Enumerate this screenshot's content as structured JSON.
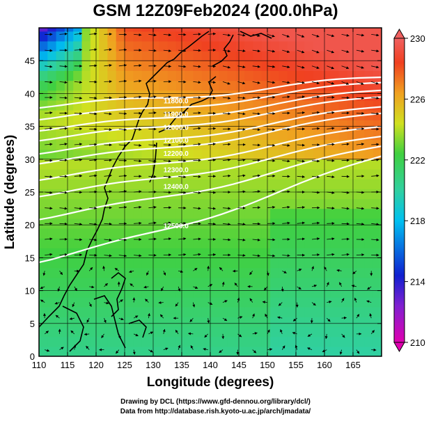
{
  "title": "GSM 12Z09Feb2024 (200.0hPa)",
  "map": {
    "x_label": "Longitude (degrees)",
    "y_label": "Latitude  (degrees)",
    "lon_range": [
      110,
      170
    ],
    "lat_range": [
      0,
      50
    ],
    "lon_ticks": [
      110,
      115,
      120,
      125,
      130,
      135,
      140,
      145,
      150,
      155,
      160,
      165
    ],
    "lat_ticks": [
      0,
      5,
      10,
      15,
      20,
      25,
      30,
      35,
      40,
      45
    ],
    "grid": true,
    "field": "temperature (K), shaded",
    "vectors": "wind arrows on regular grid",
    "contours": "white geopotential height lines"
  },
  "colorbar": {
    "ticks": [
      210,
      214,
      218,
      222,
      226,
      230
    ],
    "range": [
      210,
      230
    ],
    "colors": [
      "#e000b0",
      "#1020d0",
      "#00c0f0",
      "#30d0a0",
      "#40d040",
      "#d0e020",
      "#f0a020",
      "#f04020",
      "#f06060"
    ]
  },
  "contour_labels": [
    "12500.0",
    "12400.0",
    "12300.0",
    "12200.0",
    "12100.0",
    "12000.0",
    "11900.0",
    "11800.0"
  ],
  "credits": {
    "line1": "Drawing by DCL (https://www.gfd-dennou.org/library/dcl/)",
    "line2": "Data from http://database.rish.kyoto-u.ac.jp/arch/jmadata/"
  }
}
